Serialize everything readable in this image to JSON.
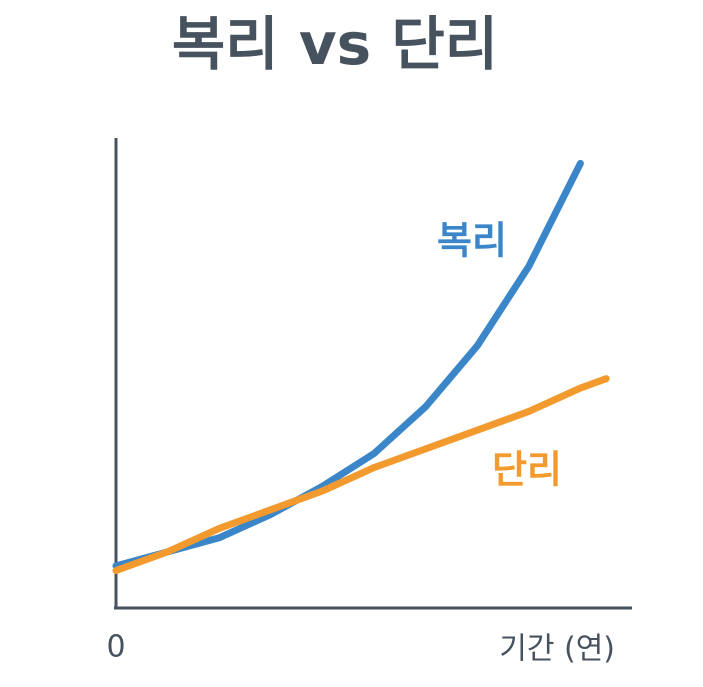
{
  "chart_data": {
    "type": "line",
    "title": "복리 vs 단리",
    "x_label": "기간 (연)",
    "x": [
      0,
      1,
      2,
      3,
      4,
      5,
      6,
      7,
      8,
      9,
      9.5
    ],
    "xlim": [
      0,
      10
    ],
    "ylim": [
      0,
      100
    ],
    "xticks": [
      0
    ],
    "series": [
      {
        "name": "복리",
        "color": "#3b86c8",
        "values": [
          9,
          12,
          15,
          20,
          26,
          33,
          43,
          56,
          73,
          95,
          null
        ]
      },
      {
        "name": "단리",
        "color": "#f39a2e",
        "values": [
          8,
          12,
          17,
          21,
          25,
          30,
          34,
          38,
          42,
          47,
          49
        ]
      }
    ]
  }
}
